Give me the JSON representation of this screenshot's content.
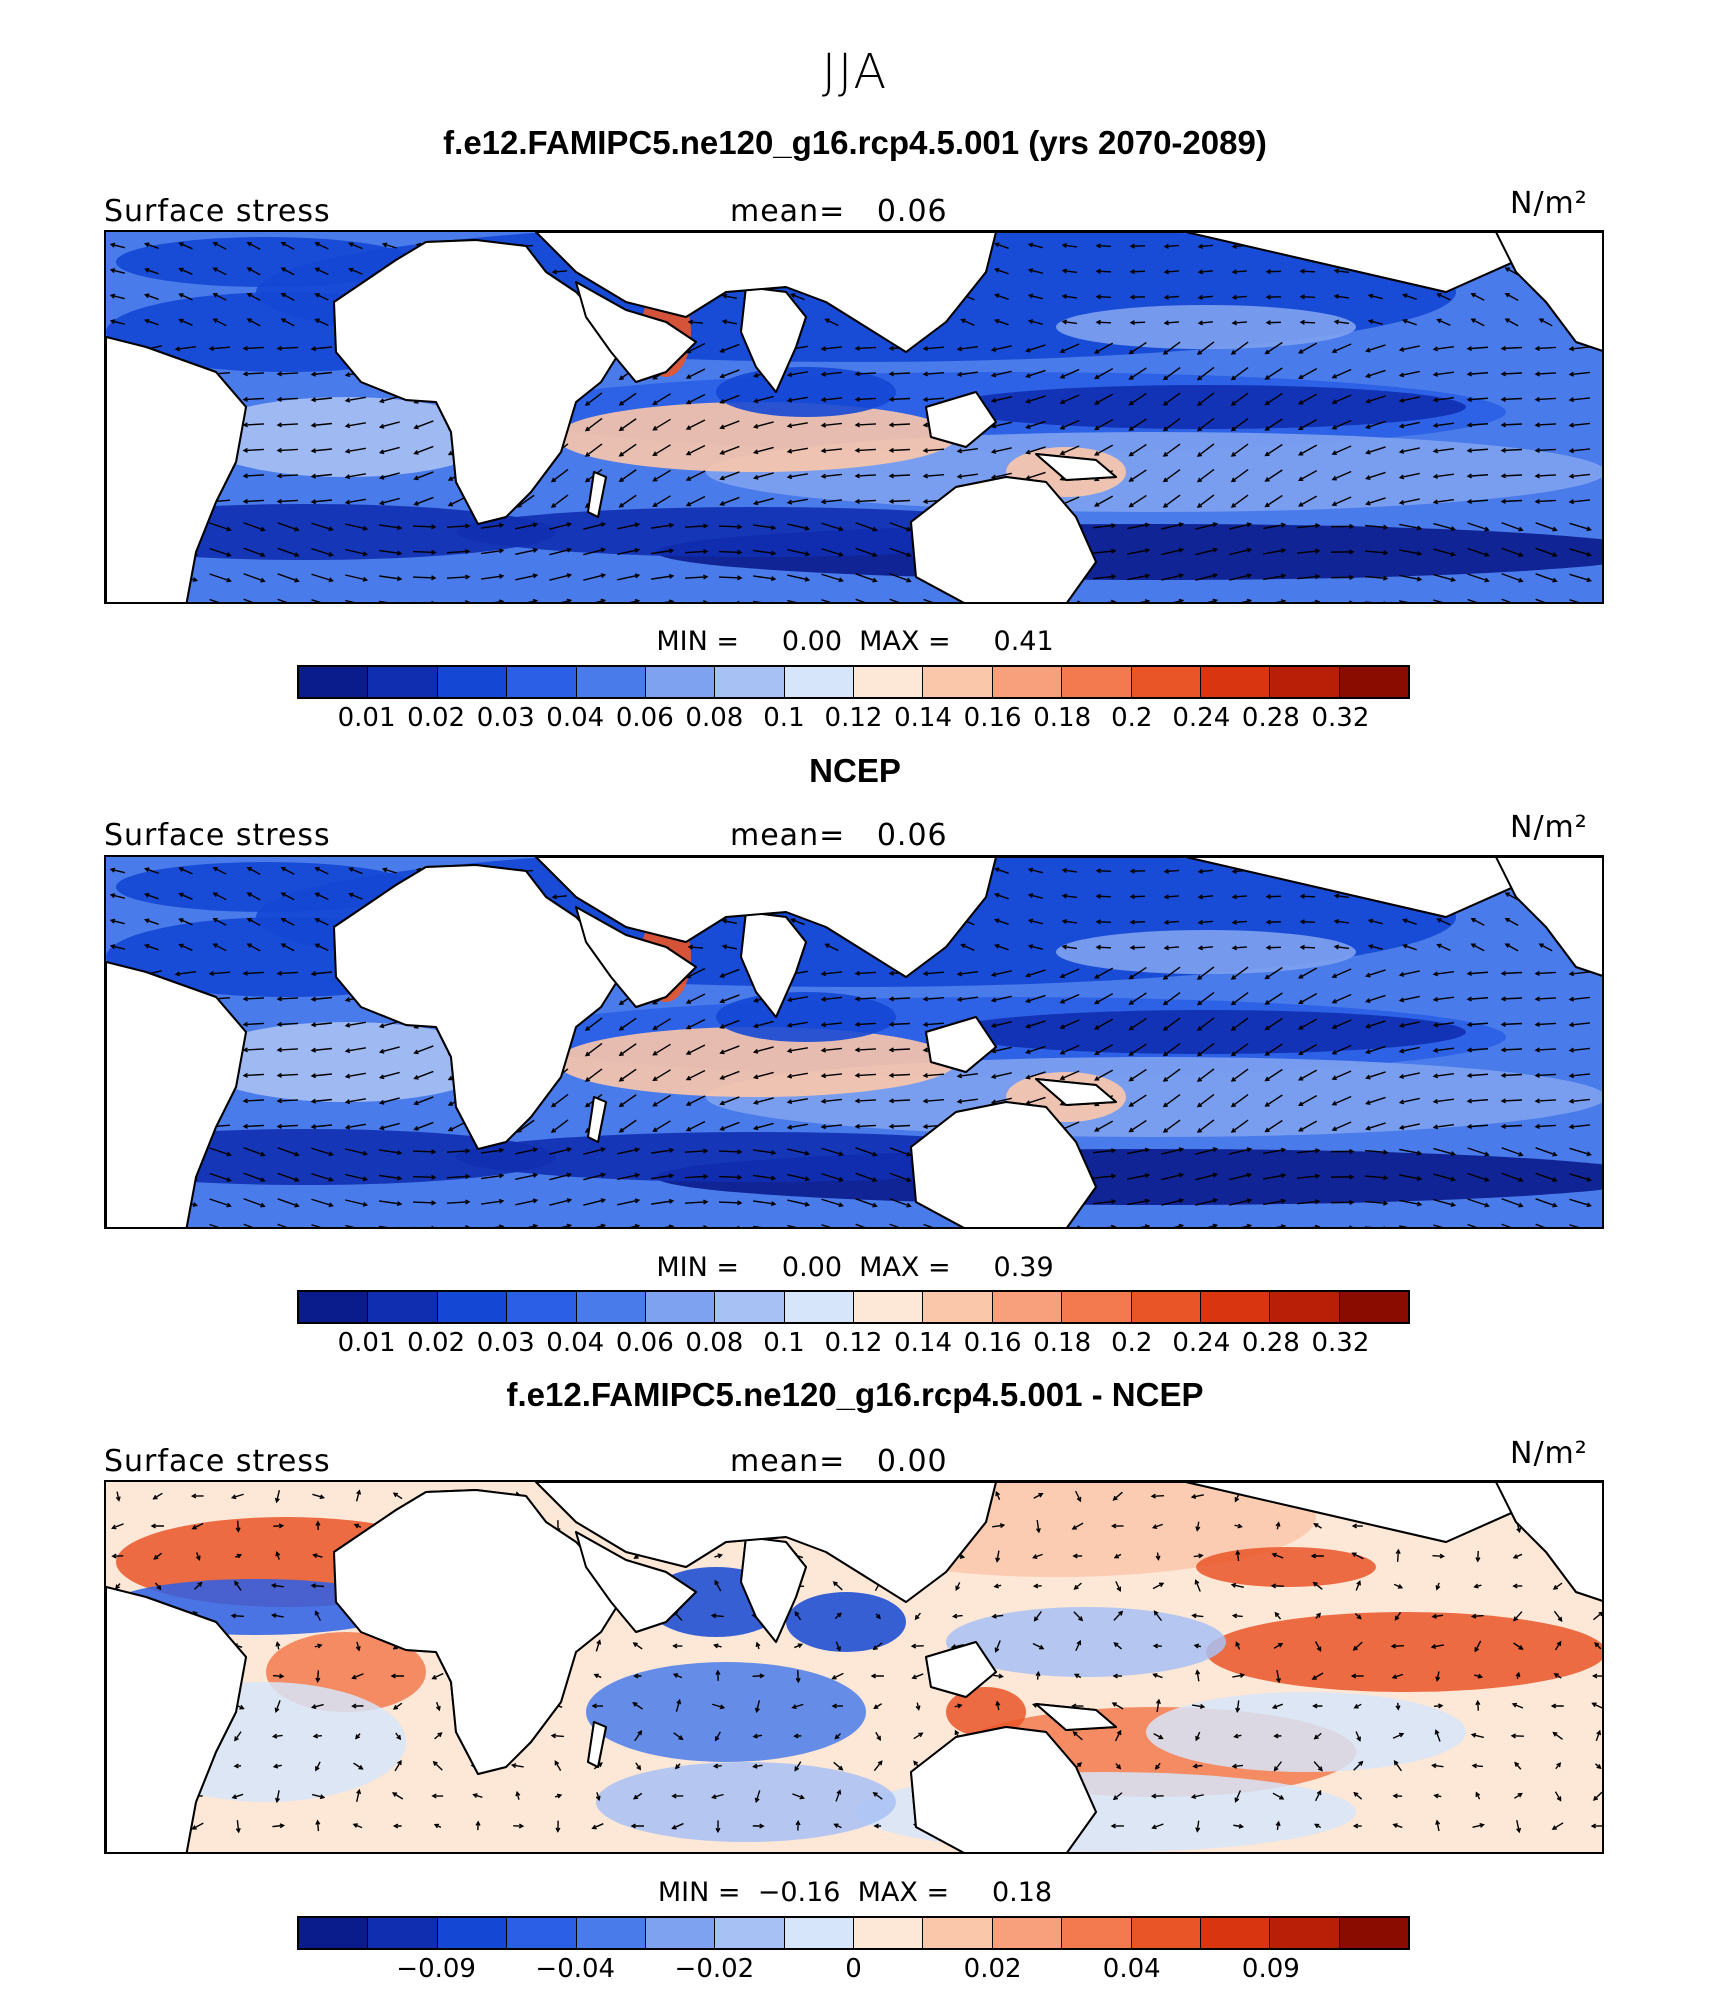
{
  "figure": {
    "season": "JJA"
  },
  "panels": [
    {
      "title": "f.e12.FAMIPC5.ne120_g16.rcp4.5.001 (yrs 2070-2089)",
      "variable": "Surface stress",
      "mean": "mean=   0.06",
      "units": "N/m²",
      "minmax": "MIN =     0.00  MAX =     0.41",
      "colorbar": {
        "labels": [
          "0.01",
          "0.02",
          "0.03",
          "0.04",
          "0.06",
          "0.08",
          "0.1",
          "0.12",
          "0.14",
          "0.16",
          "0.18",
          "0.2",
          "0.24",
          "0.28",
          "0.32"
        ],
        "colors": [
          "#0a1b8c",
          "#0f2fb0",
          "#1447d4",
          "#2a5fe6",
          "#4a7bea",
          "#7ea2f0",
          "#a8c1f4",
          "#d6e5fa",
          "#fde7d7",
          "#fbc7ab",
          "#f7a07b",
          "#f27a4e",
          "#ea5528",
          "#d93510",
          "#b81f06",
          "#8a0b00"
        ]
      }
    },
    {
      "title": "NCEP",
      "variable": "Surface stress",
      "mean": "mean=   0.06",
      "units": "N/m²",
      "minmax": "MIN =     0.00  MAX =     0.39",
      "colorbar": {
        "labels": [
          "0.01",
          "0.02",
          "0.03",
          "0.04",
          "0.06",
          "0.08",
          "0.1",
          "0.12",
          "0.14",
          "0.16",
          "0.18",
          "0.2",
          "0.24",
          "0.28",
          "0.32"
        ],
        "colors": [
          "#0a1b8c",
          "#0f2fb0",
          "#1447d4",
          "#2a5fe6",
          "#4a7bea",
          "#7ea2f0",
          "#a8c1f4",
          "#d6e5fa",
          "#fde7d7",
          "#fbc7ab",
          "#f7a07b",
          "#f27a4e",
          "#ea5528",
          "#d93510",
          "#b81f06",
          "#8a0b00"
        ]
      }
    },
    {
      "title": "f.e12.FAMIPC5.ne120_g16.rcp4.5.001 - NCEP",
      "variable": "Surface stress",
      "mean": "mean=   0.00",
      "units": "N/m²",
      "minmax": "MIN =  −0.16  MAX =     0.18",
      "colorbar": {
        "labels": [
          "−0.09",
          "−0.04",
          "−0.02",
          "0",
          "0.02",
          "0.04",
          "0.09"
        ],
        "colors": [
          "#0a1b8c",
          "#0f2fb0",
          "#1447d4",
          "#2a5fe6",
          "#4a7bea",
          "#7ea2f0",
          "#a8c1f4",
          "#d6e5fa",
          "#fde7d7",
          "#fbc7ab",
          "#f7a07b",
          "#f27a4e",
          "#ea5528",
          "#d93510",
          "#b81f06",
          "#8a0b00"
        ]
      }
    }
  ],
  "chart_data": [
    {
      "type": "heatmap",
      "title": "f.e12.FAMIPC5.ne120_g16.rcp4.5.001 (yrs 2070-2089)",
      "variable": "Surface stress",
      "units": "N/m2",
      "mean": 0.06,
      "min": 0.0,
      "max": 0.41
    },
    {
      "type": "heatmap",
      "title": "NCEP",
      "variable": "Surface stress",
      "units": "N/m2",
      "mean": 0.06,
      "min": 0.0,
      "max": 0.39
    },
    {
      "type": "heatmap",
      "title": "f.e12.FAMIPC5.ne120_g16.rcp4.5.001 - NCEP",
      "variable": "Surface stress",
      "units": "N/m2",
      "mean": 0.0,
      "min": -0.16,
      "max": 0.18
    }
  ]
}
